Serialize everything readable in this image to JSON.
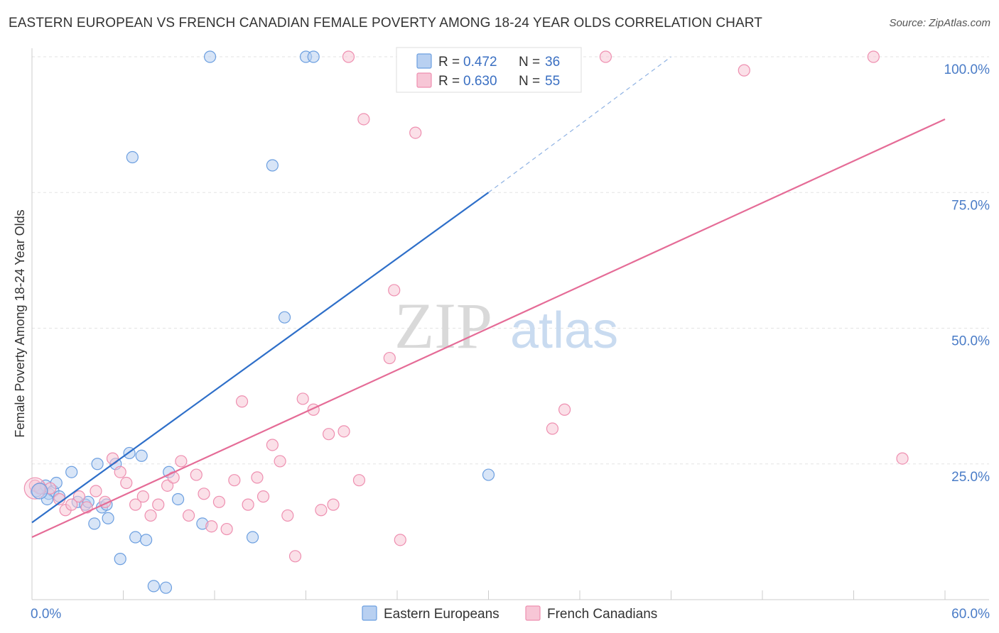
{
  "title": "EASTERN EUROPEAN VS FRENCH CANADIAN FEMALE POVERTY AMONG 18-24 YEAR OLDS CORRELATION CHART",
  "source": "Source: ZipAtlas.com",
  "watermark": {
    "zip": "ZIP",
    "atlas": "atlas"
  },
  "chart_data": {
    "type": "scatter",
    "title": "EASTERN EUROPEAN VS FRENCH CANADIAN FEMALE POVERTY AMONG 18-24 YEAR OLDS CORRELATION CHART",
    "xlabel": "",
    "ylabel": "Female Poverty Among 18-24 Year Olds",
    "xlim": [
      0,
      60
    ],
    "ylim": [
      0,
      105
    ],
    "x_tick_labels": [
      "0.0%",
      "60.0%"
    ],
    "y_ticks": [
      25,
      50,
      75,
      100
    ],
    "y_tick_labels": [
      "25.0%",
      "50.0%",
      "75.0%",
      "100.0%"
    ],
    "grid": true,
    "legend": {
      "placement": "top-center",
      "entries": [
        {
          "r_label": "R =",
          "r_value": "0.472",
          "n_label": "N =",
          "n_value": "36"
        },
        {
          "r_label": "R =",
          "r_value": "0.630",
          "n_label": "N =",
          "n_value": "55"
        }
      ]
    },
    "series": [
      {
        "name": "Eastern Europeans",
        "color": "#6c9fe0",
        "fill": "#b8d0f1",
        "line_color": "#2e6fc9",
        "trend": {
          "x0": 0,
          "y0": 14.2,
          "x1": 30,
          "y1": 75,
          "dash_x1": 42,
          "dash_y1": 100
        },
        "points": [
          [
            0.3,
            20
          ],
          [
            0.6,
            20.5
          ],
          [
            0.9,
            21
          ],
          [
            1.1,
            19.5
          ],
          [
            1.4,
            20
          ],
          [
            1.0,
            18.5
          ],
          [
            1.6,
            21.5
          ],
          [
            1.8,
            19
          ],
          [
            2.6,
            23.5
          ],
          [
            3.0,
            18
          ],
          [
            3.5,
            17.5
          ],
          [
            3.7,
            18
          ],
          [
            4.1,
            14
          ],
          [
            4.3,
            25
          ],
          [
            4.6,
            17
          ],
          [
            5.0,
            15
          ],
          [
            5.5,
            25
          ],
          [
            5.8,
            7.5
          ],
          [
            6.4,
            27
          ],
          [
            6.6,
            81.5
          ],
          [
            7.2,
            26.5
          ],
          [
            6.8,
            11.5
          ],
          [
            7.5,
            11
          ],
          [
            8.0,
            2.5
          ],
          [
            8.8,
            2.2
          ],
          [
            9.0,
            23.5
          ],
          [
            9.6,
            18.5
          ],
          [
            11.2,
            14
          ],
          [
            14.5,
            11.5
          ],
          [
            11.7,
            100
          ],
          [
            18.0,
            100
          ],
          [
            18.5,
            100
          ],
          [
            15.8,
            80
          ],
          [
            16.6,
            52
          ],
          [
            30.0,
            23
          ],
          [
            4.9,
            17.5
          ]
        ]
      },
      {
        "name": "French Canadians",
        "color": "#ee8fb0",
        "fill": "#f7c6d6",
        "line_color": "#e56c97",
        "trend": {
          "x0": 0,
          "y0": 11.5,
          "x1": 60,
          "y1": 88.5
        },
        "points": [
          [
            0.2,
            21
          ],
          [
            0.5,
            20.5
          ],
          [
            1.2,
            20.5
          ],
          [
            1.8,
            18.5
          ],
          [
            2.2,
            16.5
          ],
          [
            2.6,
            17.5
          ],
          [
            3.1,
            19
          ],
          [
            3.6,
            17
          ],
          [
            4.2,
            20
          ],
          [
            4.8,
            18
          ],
          [
            5.3,
            26
          ],
          [
            5.8,
            23.5
          ],
          [
            6.2,
            21.5
          ],
          [
            6.8,
            17.5
          ],
          [
            7.3,
            19
          ],
          [
            7.8,
            15.5
          ],
          [
            8.3,
            17.5
          ],
          [
            8.9,
            21
          ],
          [
            9.3,
            22.5
          ],
          [
            9.8,
            25.5
          ],
          [
            10.3,
            15.5
          ],
          [
            10.8,
            23
          ],
          [
            11.3,
            19.5
          ],
          [
            11.8,
            13.5
          ],
          [
            12.3,
            18
          ],
          [
            12.8,
            13
          ],
          [
            13.3,
            22
          ],
          [
            13.8,
            36.5
          ],
          [
            14.2,
            17.5
          ],
          [
            14.8,
            22.5
          ],
          [
            15.2,
            19
          ],
          [
            15.8,
            28.5
          ],
          [
            16.3,
            25.5
          ],
          [
            16.8,
            15.5
          ],
          [
            17.3,
            8
          ],
          [
            17.8,
            37
          ],
          [
            18.5,
            35
          ],
          [
            19.0,
            16.5
          ],
          [
            19.8,
            17.5
          ],
          [
            19.5,
            30.5
          ],
          [
            20.5,
            31
          ],
          [
            21.5,
            22
          ],
          [
            20.8,
            100
          ],
          [
            21.8,
            88.5
          ],
          [
            23.5,
            44.5
          ],
          [
            23.8,
            57
          ],
          [
            24.2,
            11
          ],
          [
            25.2,
            86
          ],
          [
            31.2,
            100
          ],
          [
            35.0,
            35
          ],
          [
            34.2,
            31.5
          ],
          [
            37.7,
            100
          ],
          [
            46.8,
            97.5
          ],
          [
            55.3,
            100
          ],
          [
            57.2,
            26
          ]
        ]
      }
    ]
  },
  "bottom_legend": [
    "Eastern Europeans",
    "French Canadians"
  ]
}
